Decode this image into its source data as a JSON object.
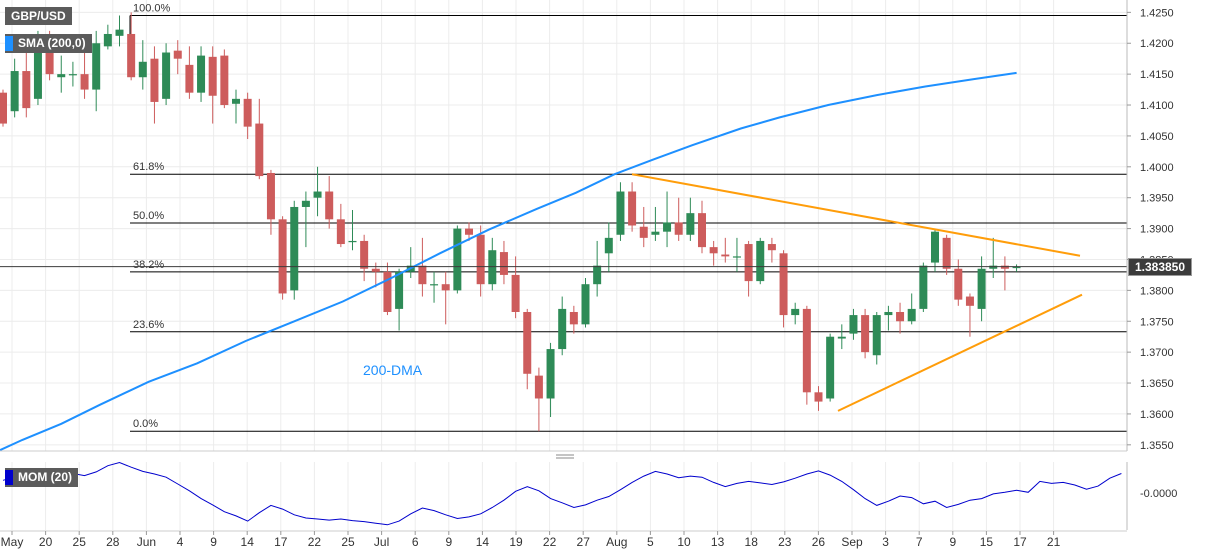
{
  "symbol": "GBP/USD",
  "indicators": {
    "sma_label": "SMA (200,0)",
    "mom_label": "MOM (20)",
    "dma_annotation": "200-DMA"
  },
  "current_price": "1.383850",
  "colors": {
    "bull": "#2e8b57",
    "bear": "#cd5c5c",
    "sma": "#1e90ff",
    "trend": "#ff9d0a",
    "fib": "#000000",
    "mom": "#0000cd"
  },
  "chart_data": [
    {
      "type": "candlestick",
      "title": "GBP/USD",
      "ylim": [
        1.354,
        1.427
      ],
      "y_ticks": [
        "1.4250",
        "1.4200",
        "1.4150",
        "1.4100",
        "1.4050",
        "1.4000",
        "1.3950",
        "1.3900",
        "1.3850",
        "1.3800",
        "1.3750",
        "1.3700",
        "1.3650",
        "1.3600",
        "1.3550"
      ],
      "x_tick_labels": [
        "May",
        "20",
        "25",
        "28",
        "Jun",
        "4",
        "9",
        "14",
        "17",
        "22",
        "25",
        "Jul",
        "6",
        "9",
        "14",
        "19",
        "22",
        "27",
        "Aug",
        "5",
        "10",
        "13",
        "18",
        "23",
        "26",
        "Sep",
        "3",
        "7",
        "9",
        "15",
        "17",
        "21"
      ],
      "fibonacci": [
        {
          "label": "100.0%",
          "value": 1.4245
        },
        {
          "label": "61.8%",
          "value": 1.3988
        },
        {
          "label": "50.0%",
          "value": 1.3909
        },
        {
          "label": "38.2%",
          "value": 1.383
        },
        {
          "label": "23.6%",
          "value": 1.3733
        },
        {
          "label": "0.0%",
          "value": 1.3572
        }
      ],
      "sma_200": [
        [
          -5,
          1.354
        ],
        [
          20,
          1.3558
        ],
        [
          60,
          1.3584
        ],
        [
          100,
          1.3615
        ],
        [
          150,
          1.3652
        ],
        [
          200,
          1.3682
        ],
        [
          250,
          1.3718
        ],
        [
          300,
          1.375
        ],
        [
          350,
          1.3782
        ],
        [
          400,
          1.382
        ],
        [
          450,
          1.386
        ],
        [
          500,
          1.3898
        ],
        [
          550,
          1.3932
        ],
        [
          590,
          1.3958
        ],
        [
          630,
          1.3988
        ],
        [
          670,
          1.4012
        ],
        [
          710,
          1.4035
        ],
        [
          760,
          1.4062
        ],
        [
          800,
          1.408
        ],
        [
          850,
          1.41
        ],
        [
          900,
          1.4116
        ],
        [
          950,
          1.413
        ],
        [
          1000,
          1.4142
        ],
        [
          1044,
          1.4152
        ]
      ],
      "trendlines": [
        {
          "from": [
            632,
            1.3988
          ],
          "to": [
            1080,
            1.3856
          ]
        },
        {
          "from": [
            838,
            1.3605
          ],
          "to": [
            1082,
            1.3793
          ]
        }
      ],
      "candles": [
        [
          0,
          1.412,
          1.407,
          1.4125,
          1.4065
        ],
        [
          12,
          1.409,
          1.4155,
          1.4175,
          1.408
        ],
        [
          24,
          1.4155,
          1.4095,
          1.4205,
          1.408
        ],
        [
          36,
          1.411,
          1.419,
          1.422,
          1.41
        ],
        [
          48,
          1.4188,
          1.415,
          1.422,
          1.414
        ],
        [
          60,
          1.4145,
          1.415,
          1.418,
          1.412
        ],
        [
          72,
          1.415,
          1.415,
          1.417,
          1.413
        ],
        [
          84,
          1.415,
          1.4125,
          1.4185,
          1.411
        ],
        [
          96,
          1.4125,
          1.42,
          1.422,
          1.409
        ],
        [
          108,
          1.4195,
          1.4215,
          1.423,
          1.419
        ],
        [
          120,
          1.4212,
          1.4222,
          1.4245,
          1.4195
        ],
        [
          132,
          1.4215,
          1.4145,
          1.425,
          1.414
        ],
        [
          144,
          1.4145,
          1.417,
          1.4205,
          1.4125
        ],
        [
          156,
          1.4175,
          1.4105,
          1.4195,
          1.407
        ],
        [
          168,
          1.411,
          1.4185,
          1.42,
          1.41
        ],
        [
          180,
          1.4188,
          1.4175,
          1.4205,
          1.415
        ],
        [
          192,
          1.4165,
          1.412,
          1.4195,
          1.411
        ],
        [
          204,
          1.412,
          1.418,
          1.4195,
          1.4105
        ],
        [
          216,
          1.4178,
          1.4115,
          1.4195,
          1.407
        ],
        [
          228,
          1.418,
          1.41,
          1.419,
          1.4095
        ],
        [
          240,
          1.4102,
          1.411,
          1.4125,
          1.407
        ],
        [
          252,
          1.411,
          1.4065,
          1.412,
          1.4045
        ],
        [
          264,
          1.407,
          1.3985,
          1.411,
          1.398
        ],
        [
          276,
          1.399,
          1.3915,
          1.3995,
          1.389
        ],
        [
          288,
          1.3915,
          1.3795,
          1.392,
          1.3785
        ],
        [
          300,
          1.38,
          1.3935,
          1.3945,
          1.3785
        ],
        [
          312,
          1.3935,
          1.3945,
          1.396,
          1.387
        ],
        [
          324,
          1.395,
          1.396,
          1.4,
          1.392
        ],
        [
          336,
          1.396,
          1.3915,
          1.3985,
          1.39
        ],
        [
          348,
          1.3915,
          1.3875,
          1.394,
          1.387
        ],
        [
          360,
          1.3878,
          1.388,
          1.393,
          1.3865
        ],
        [
          372,
          1.388,
          1.3835,
          1.389,
          1.3815
        ],
        [
          384,
          1.3835,
          1.383,
          1.3845,
          1.3805
        ],
        [
          396,
          1.383,
          1.3765,
          1.3845,
          1.376
        ],
        [
          408,
          1.377,
          1.383,
          1.3835,
          1.3735
        ],
        [
          420,
          1.383,
          1.384,
          1.387,
          1.382
        ],
        [
          432,
          1.384,
          1.381,
          1.3885,
          1.379
        ],
        [
          444,
          1.381,
          1.381,
          1.383,
          1.378
        ],
        [
          456,
          1.381,
          1.38,
          1.383,
          1.3745
        ],
        [
          468,
          1.38,
          1.39,
          1.3905,
          1.3795
        ],
        [
          480,
          1.39,
          1.389,
          1.391,
          1.388
        ],
        [
          492,
          1.389,
          1.381,
          1.3905,
          1.379
        ],
        [
          504,
          1.381,
          1.3865,
          1.3885,
          1.38
        ],
        [
          516,
          1.3862,
          1.3825,
          1.388,
          1.381
        ],
        [
          528,
          1.3825,
          1.3765,
          1.3855,
          1.3755
        ],
        [
          540,
          1.3765,
          1.3665,
          1.377,
          1.364
        ],
        [
          552,
          1.3662,
          1.3625,
          1.3675,
          1.3572
        ],
        [
          564,
          1.3625,
          1.3705,
          1.3715,
          1.3595
        ],
        [
          576,
          1.3705,
          1.377,
          1.379,
          1.3695
        ],
        [
          588,
          1.3765,
          1.3745,
          1.3775,
          1.373
        ],
        [
          600,
          1.3745,
          1.381,
          1.382,
          1.374
        ],
        [
          612,
          1.381,
          1.384,
          1.388,
          1.379
        ],
        [
          624,
          1.386,
          1.3885,
          1.391,
          1.383
        ],
        [
          636,
          1.389,
          1.396,
          1.3975,
          1.388
        ],
        [
          648,
          1.396,
          1.3905,
          1.3975,
          1.3895
        ],
        [
          660,
          1.3903,
          1.3885,
          1.3935,
          1.387
        ],
        [
          672,
          1.389,
          1.3895,
          1.3935,
          1.388
        ],
        [
          684,
          1.3895,
          1.391,
          1.396,
          1.387
        ],
        [
          696,
          1.391,
          1.389,
          1.395,
          1.388
        ],
        [
          708,
          1.389,
          1.3925,
          1.395,
          1.388
        ],
        [
          720,
          1.3925,
          1.387,
          1.3945,
          1.386
        ],
        [
          732,
          1.387,
          1.386,
          1.388,
          1.384
        ],
        [
          744,
          1.3858,
          1.3855,
          1.3885,
          1.3845
        ],
        [
          756,
          1.3855,
          1.3855,
          1.3885,
          1.383
        ],
        [
          768,
          1.3875,
          1.3815,
          1.388,
          1.379
        ],
        [
          780,
          1.3815,
          1.388,
          1.3885,
          1.381
        ],
        [
          792,
          1.3875,
          1.3865,
          1.3885,
          1.3845
        ],
        [
          804,
          1.386,
          1.376,
          1.3865,
          1.374
        ],
        [
          816,
          1.376,
          1.377,
          1.378,
          1.3745
        ],
        [
          828,
          1.377,
          1.3635,
          1.3775,
          1.3615
        ],
        [
          840,
          1.3635,
          1.362,
          1.3645,
          1.3605
        ],
        [
          852,
          1.3625,
          1.3725,
          1.373,
          1.362
        ],
        [
          864,
          1.3722,
          1.3725,
          1.3745,
          1.3705
        ],
        [
          876,
          1.373,
          1.376,
          1.377,
          1.372
        ],
        [
          888,
          1.376,
          1.37,
          1.377,
          1.369
        ],
        [
          900,
          1.3695,
          1.376,
          1.3765,
          1.368
        ],
        [
          912,
          1.376,
          1.3765,
          1.3775,
          1.3735
        ],
        [
          924,
          1.3765,
          1.375,
          1.378,
          1.373
        ],
        [
          936,
          1.375,
          1.377,
          1.3795,
          1.3745
        ],
        [
          948,
          1.377,
          1.384,
          1.3845,
          1.3765
        ],
        [
          960,
          1.3845,
          1.3895,
          1.39,
          1.383
        ],
        [
          972,
          1.3885,
          1.3835,
          1.389,
          1.3825
        ],
        [
          984,
          1.3835,
          1.3785,
          1.385,
          1.3775
        ],
        [
          996,
          1.379,
          1.3775,
          1.3795,
          1.3725
        ],
        [
          1008,
          1.377,
          1.3835,
          1.3855,
          1.375
        ],
        [
          1020,
          1.3835,
          1.384,
          1.3885,
          1.382
        ],
        [
          1032,
          1.384,
          1.3835,
          1.3855,
          1.38
        ],
        [
          1044,
          1.3836,
          1.3838,
          1.3842,
          1.383
        ]
      ]
    },
    {
      "type": "line",
      "title": "MOM (20)",
      "y_ticks": [
        "-0.0000"
      ],
      "ylim": [
        -0.095,
        0.035
      ],
      "series": [
        {
          "name": "MOM (20)",
          "values": [
            0.0,
            0.006,
            0.009,
            0.015,
            0.022,
            0.018,
            0.013,
            0.009,
            0.016,
            0.028,
            0.034,
            0.025,
            0.017,
            0.012,
            0.006,
            -0.007,
            -0.02,
            -0.035,
            -0.047,
            -0.06,
            -0.068,
            -0.078,
            -0.062,
            -0.048,
            -0.055,
            -0.066,
            -0.072,
            -0.074,
            -0.076,
            -0.074,
            -0.077,
            -0.079,
            -0.082,
            -0.085,
            -0.078,
            -0.064,
            -0.053,
            -0.058,
            -0.066,
            -0.073,
            -0.07,
            -0.064,
            -0.052,
            -0.038,
            -0.021,
            -0.012,
            -0.02,
            -0.035,
            -0.043,
            -0.052,
            -0.047,
            -0.038,
            -0.031,
            -0.018,
            -0.004,
            0.008,
            0.017,
            0.012,
            0.005,
            0.008,
            0.006,
            -0.004,
            -0.012,
            -0.006,
            -0.002,
            -0.005,
            -0.008,
            -0.003,
            0.004,
            0.012,
            0.018,
            0.01,
            -0.002,
            -0.018,
            -0.035,
            -0.048,
            -0.04,
            -0.03,
            -0.033,
            -0.045,
            -0.04,
            -0.052,
            -0.046,
            -0.038,
            -0.035,
            -0.026,
            -0.023,
            -0.019,
            -0.023,
            -0.002,
            -0.006,
            -0.004,
            -0.009,
            -0.017,
            -0.011,
            0.004,
            0.013
          ]
        }
      ]
    }
  ]
}
